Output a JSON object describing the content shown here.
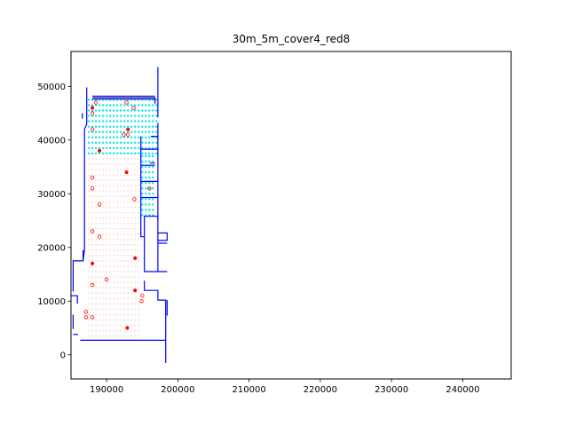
{
  "chart_data": {
    "type": "scatter",
    "title": "30m_5m_cover4_red8",
    "xlabel": "",
    "ylabel": "",
    "xlim": [
      185000,
      246800
    ],
    "ylim": [
      -4500,
      56500
    ],
    "grid": false,
    "xticks": [
      190000,
      200000,
      210000,
      220000,
      230000,
      240000
    ],
    "xtick_labels": [
      "190000",
      "200000",
      "210000",
      "220000",
      "230000",
      "240000"
    ],
    "yticks": [
      0,
      10000,
      20000,
      30000,
      40000,
      50000
    ],
    "ytick_labels": [
      "0",
      "10000",
      "20000",
      "30000",
      "40000",
      "50000"
    ],
    "colors": {
      "boundary": "#0000ff",
      "dark_line": "#00008b",
      "cover_dots": "#00e5ee",
      "grid_dots": "#f5d7cf",
      "red": "#ff0000",
      "gray": "#808080"
    },
    "boundary_lines": [
      [
        [
          187200,
          49800
        ],
        [
          187200,
          43000
        ],
        [
          186900,
          42000
        ],
        [
          186900,
          19500
        ],
        [
          186700,
          17500
        ],
        [
          185300,
          17500
        ],
        [
          185300,
          11800
        ]
      ],
      [
        [
          186700,
          19500
        ],
        [
          186700,
          17500
        ]
      ],
      [
        [
          185000,
          11000
        ],
        [
          185900,
          11000
        ],
        [
          185900,
          9500
        ]
      ],
      [
        [
          185300,
          7500
        ],
        [
          185300,
          4800
        ]
      ],
      [
        [
          185300,
          3800
        ],
        [
          186000,
          3800
        ]
      ],
      [
        [
          186300,
          2700
        ],
        [
          198300,
          2700
        ],
        [
          198300,
          -1500
        ]
      ],
      [
        [
          188000,
          47900
        ],
        [
          196800,
          47900
        ],
        [
          196800,
          46800
        ]
      ],
      [
        [
          197200,
          53600
        ],
        [
          197200,
          44200
        ]
      ],
      [
        [
          197200,
          43200
        ],
        [
          197200,
          25000
        ]
      ],
      [
        [
          196200,
          40700
        ],
        [
          197200,
          40700
        ]
      ],
      [
        [
          194800,
          40700
        ],
        [
          194800,
          22000
        ],
        [
          195200,
          22000
        ]
      ],
      [
        [
          194800,
          38300
        ],
        [
          197200,
          38300
        ]
      ],
      [
        [
          194800,
          35300
        ],
        [
          196800,
          35300
        ]
      ],
      [
        [
          194800,
          32300
        ],
        [
          197200,
          32300
        ]
      ],
      [
        [
          194800,
          29300
        ],
        [
          197200,
          29300
        ]
      ],
      [
        [
          195200,
          25800
        ],
        [
          197200,
          25800
        ]
      ],
      [
        [
          195300,
          25800
        ],
        [
          195300,
          15500
        ],
        [
          198500,
          15500
        ]
      ],
      [
        [
          195300,
          13800
        ],
        [
          195300,
          12000
        ],
        [
          197200,
          12000
        ],
        [
          197200,
          10200
        ],
        [
          198300,
          10200
        ],
        [
          198300,
          2700
        ]
      ],
      [
        [
          197200,
          25800
        ],
        [
          197200,
          15500
        ]
      ],
      [
        [
          197200,
          22700
        ],
        [
          198500,
          22700
        ],
        [
          198500,
          21300
        ],
        [
          197200,
          21300
        ]
      ],
      [
        [
          197200,
          20800
        ],
        [
          198500,
          20800
        ]
      ],
      [
        [
          198500,
          10200
        ],
        [
          198500,
          7300
        ]
      ],
      [
        [
          186600,
          45000
        ],
        [
          186600,
          44000
        ]
      ]
    ],
    "dark_lines": [
      [
        [
          188000,
          48200
        ],
        [
          196800,
          48200
        ]
      ],
      [
        [
          188000,
          47600
        ],
        [
          196800,
          47600
        ]
      ],
      [
        [
          196100,
          35700
        ],
        [
          196800,
          35700
        ]
      ]
    ],
    "red_filled": [
      [
        188000,
        46000
      ],
      [
        193000,
        42000
      ],
      [
        189000,
        38000
      ],
      [
        192800,
        34000
      ],
      [
        188000,
        17000
      ],
      [
        194000,
        18000
      ],
      [
        194000,
        12000
      ],
      [
        192900,
        5000
      ]
    ],
    "red_hollow": [
      [
        188500,
        47000
      ],
      [
        192800,
        47000
      ],
      [
        193800,
        46000
      ],
      [
        188000,
        45000
      ],
      [
        188000,
        42000
      ],
      [
        192400,
        41000
      ],
      [
        193000,
        41000
      ],
      [
        188000,
        33000
      ],
      [
        188000,
        31000
      ],
      [
        196000,
        31000
      ],
      [
        193900,
        29000
      ],
      [
        189000,
        28000
      ],
      [
        188000,
        23000
      ],
      [
        189000,
        22000
      ],
      [
        190000,
        14000
      ],
      [
        188000,
        13000
      ],
      [
        195000,
        11000
      ],
      [
        194900,
        10000
      ],
      [
        187100,
        8000
      ],
      [
        187100,
        7000
      ],
      [
        188000,
        7000
      ]
    ],
    "cover_region": {
      "x_range": [
        187500,
        197200
      ],
      "y_range": [
        37500,
        48000
      ],
      "x_step": 500,
      "y_step": 1000
    },
    "cover_strip": {
      "x_range": [
        195000,
        196800
      ],
      "y_range": [
        26000,
        37000
      ],
      "x_step": 500,
      "y_step": 1000
    },
    "grid_region": {
      "x_range": [
        187500,
        194500
      ],
      "y_range": [
        3500,
        37000
      ],
      "x_step": 500,
      "y_step": 1000
    }
  }
}
